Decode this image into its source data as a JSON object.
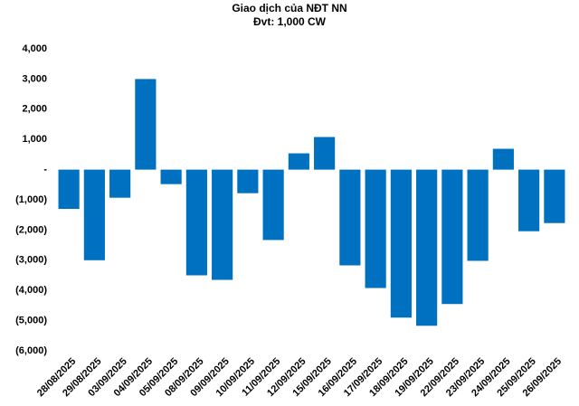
{
  "chart_data": {
    "type": "bar",
    "title": "Giao dịch của NĐT NN",
    "subtitle": "Đvt: 1,000 CW",
    "categories": [
      "28/08/2025",
      "29/08/2025",
      "03/09/2025",
      "04/09/2025",
      "05/09/2025",
      "08/09/2025",
      "09/09/2025",
      "10/09/2025",
      "11/09/2025",
      "12/09/2025",
      "15/09/2025",
      "16/09/2025",
      "17/09/2025",
      "18/09/2025",
      "19/09/2025",
      "22/09/2025",
      "23/09/2025",
      "24/09/2025",
      "25/09/2025",
      "26/09/2025"
    ],
    "values": [
      -1300,
      -3000,
      -930,
      3000,
      -480,
      -3500,
      -3650,
      -780,
      -2330,
      540,
      1080,
      -3170,
      -3920,
      -4900,
      -5170,
      -4450,
      -3020,
      690,
      -2040,
      -1770
    ],
    "color": "#0070c0",
    "ylim": [
      -6000,
      4000
    ],
    "yticks": [
      {
        "value": 4000,
        "label": "4,000"
      },
      {
        "value": 3000,
        "label": "3,000"
      },
      {
        "value": 2000,
        "label": "2,000"
      },
      {
        "value": 1000,
        "label": "1,000"
      },
      {
        "value": 0,
        "label": "-"
      },
      {
        "value": -1000,
        "label": "(1,000)"
      },
      {
        "value": -2000,
        "label": "(2,000)"
      },
      {
        "value": -3000,
        "label": "(3,000)"
      },
      {
        "value": -4000,
        "label": "(4,000)"
      },
      {
        "value": -5000,
        "label": "(5,000)"
      },
      {
        "value": -6000,
        "label": "(6,000)"
      }
    ],
    "grid": false
  }
}
